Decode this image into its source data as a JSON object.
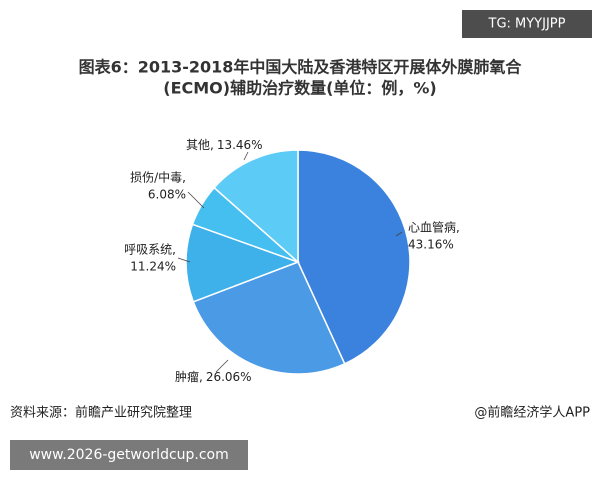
{
  "header": {
    "badge": "TG: MYYJJPP"
  },
  "chart_data": {
    "type": "pie",
    "title": [
      "图表6：2013-2018年中国大陆及香港特区开展体外膜肺氧合",
      "(ECMO)辅助治疗数量(单位：例，%)"
    ],
    "categories": [
      "心血管病,",
      "肿瘤,",
      "呼吸系统,",
      "损伤/中毒,",
      "其他,"
    ],
    "values": [
      43.16,
      26.06,
      11.24,
      6.08,
      13.46
    ],
    "value_labels": [
      "43.16%",
      "26.06%",
      "11.24%",
      "6.08%",
      "13.46%"
    ],
    "colors": [
      "#3b82de",
      "#4a9ae6",
      "#3eb0ea",
      "#45bff0",
      "#5ccbf6"
    ]
  },
  "footer": {
    "source": "资料来源：前瞻产业研究院整理",
    "brand": "@前瞻经济学人APP",
    "url": "www.2026-getworldcup.com"
  }
}
